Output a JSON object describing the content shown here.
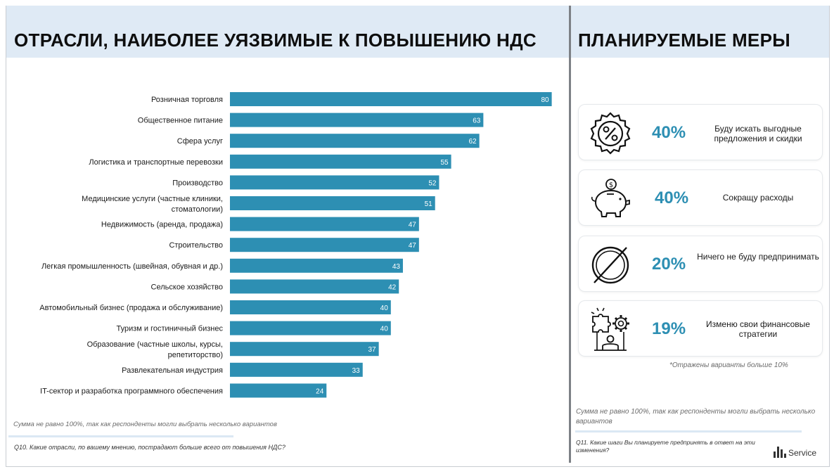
{
  "left_panel": {
    "title": "ОТРАСЛИ, НАИБОЛЕЕ УЯЗВИМЫЕ К ПОВЫШЕНИЮ НДС",
    "note": "Сумма не равно 100%, так как респонденты могли выбрать несколько вариантов",
    "question": "Q10. Какие отрасли, по вашему мнению, пострадают больше всего от повышения НДС?"
  },
  "chart_data": {
    "type": "bar",
    "orientation": "horizontal",
    "categories": [
      "Розничная торговля",
      "Общественное питание",
      "Сфера услуг",
      "Логистика и транспортные перевозки",
      "Производство",
      "Медицинские услуги (частные клиники,\nстоматологии)",
      "Недвижимость (аренда, продажа)",
      "Строительство",
      "Легкая промышленность (швейная, обувная и др.)",
      "Сельское хозяйство",
      "Автомобильный бизнес (продажа и обслуживание)",
      "Туризм и гостиничный бизнес",
      "Образование (частные школы, курсы,\nрепетиторство)",
      "Развлекательная индустрия",
      "IT-сектор и разработка программного обеспечения"
    ],
    "values": [
      80,
      63,
      62,
      55,
      52,
      51,
      47,
      47,
      43,
      42,
      40,
      40,
      37,
      33,
      24
    ],
    "bar_color": "#2d8fb3",
    "grid": false
  },
  "right_panel": {
    "title": "ПЛАНИРУЕМЫЕ МЕРЫ",
    "measures": [
      {
        "icon": "discount-badge-icon",
        "percent": "40%",
        "text": "Буду искать выгодные предложения и скидки",
        "value": 40
      },
      {
        "icon": "piggy-bank-icon",
        "percent": "40%",
        "text": "Сокращу расходы",
        "value": 40
      },
      {
        "icon": "prohibited-icon",
        "percent": "20%",
        "text": "Ничего не буду предпринимать",
        "value": 20
      },
      {
        "icon": "puzzle-gear-person-icon",
        "percent": "19%",
        "text": "Изменю свои финансовые стратегии",
        "value": 19
      }
    ],
    "shown_note": "*Отражены варианты больше 10%",
    "note": "Сумма не равно 100%, так как респонденты могли выбрать несколько вариантов",
    "question": "Q11. Какие шаги Вы планируете предпринять в ответ на эти изменения?"
  },
  "logo": {
    "text": "Service"
  },
  "colors": {
    "accent": "#2d8fb3",
    "header_bg": "#dfeaf5"
  }
}
